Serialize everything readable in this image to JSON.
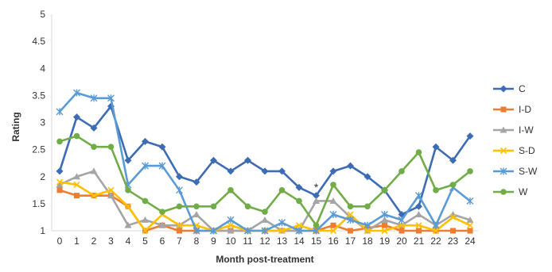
{
  "chart_data": {
    "type": "line",
    "title": "",
    "xlabel": "Month post-treatment",
    "ylabel": "Rating",
    "x": [
      0,
      1,
      2,
      3,
      4,
      5,
      6,
      7,
      8,
      9,
      10,
      11,
      12,
      13,
      14,
      15,
      16,
      17,
      18,
      19,
      20,
      21,
      22,
      23,
      24
    ],
    "ylim": [
      1,
      5
    ],
    "yticks": [
      "1",
      "1.5",
      "2",
      "2.5",
      "3",
      "3.5",
      "4",
      "4.5",
      "5"
    ],
    "grid": false,
    "legend_position": "right",
    "annotations": [
      {
        "text": "*",
        "x": 15,
        "y": 1.85
      }
    ],
    "series": [
      {
        "name": "C",
        "color": "#3d6cb4",
        "marker": "diamond",
        "values": [
          2.1,
          3.1,
          2.9,
          3.3,
          2.3,
          2.65,
          2.55,
          2.0,
          1.9,
          2.3,
          2.1,
          2.3,
          2.1,
          2.1,
          1.8,
          1.65,
          2.1,
          2.2,
          2.0,
          1.75,
          1.3,
          1.45,
          2.55,
          2.3,
          2.75
        ]
      },
      {
        "name": "I-D",
        "color": "#ed7d31",
        "marker": "square",
        "values": [
          1.75,
          1.65,
          1.65,
          1.65,
          1.45,
          1.0,
          1.1,
          1.0,
          1.0,
          1.0,
          1.0,
          1.0,
          1.0,
          1.0,
          1.0,
          1.0,
          1.1,
          1.0,
          1.05,
          1.1,
          1.0,
          1.0,
          1.0,
          1.0,
          1.0
        ]
      },
      {
        "name": "I-W",
        "color": "#a5a5a5",
        "marker": "triangle",
        "values": [
          1.85,
          2.0,
          2.1,
          1.65,
          1.1,
          1.2,
          1.1,
          1.1,
          1.3,
          1.0,
          1.0,
          1.0,
          1.2,
          1.0,
          1.0,
          1.55,
          1.55,
          1.25,
          1.0,
          1.2,
          1.1,
          1.3,
          1.1,
          1.3,
          1.2
        ]
      },
      {
        "name": "S-D",
        "color": "#ffc000",
        "marker": "x",
        "values": [
          1.9,
          1.85,
          1.65,
          1.75,
          1.45,
          1.0,
          1.3,
          1.1,
          1.1,
          1.0,
          1.1,
          1.0,
          1.0,
          1.0,
          1.1,
          1.0,
          1.0,
          1.3,
          1.0,
          1.0,
          1.1,
          1.1,
          1.0,
          1.25,
          1.1
        ]
      },
      {
        "name": "S-W",
        "color": "#5b9bd5",
        "marker": "star",
        "values": [
          3.2,
          3.55,
          3.45,
          3.45,
          1.85,
          2.2,
          2.2,
          1.75,
          1.0,
          1.0,
          1.2,
          1.0,
          1.0,
          1.15,
          1.0,
          1.0,
          1.3,
          1.2,
          1.1,
          1.3,
          1.2,
          1.65,
          1.1,
          1.8,
          1.55
        ]
      },
      {
        "name": "W",
        "color": "#70ad47",
        "marker": "circle",
        "values": [
          2.65,
          2.75,
          2.55,
          2.55,
          1.75,
          1.55,
          1.35,
          1.45,
          1.45,
          1.45,
          1.75,
          1.45,
          1.35,
          1.75,
          1.55,
          1.1,
          1.85,
          1.45,
          1.45,
          1.75,
          2.1,
          2.45,
          1.75,
          1.85,
          2.1
        ]
      }
    ]
  }
}
